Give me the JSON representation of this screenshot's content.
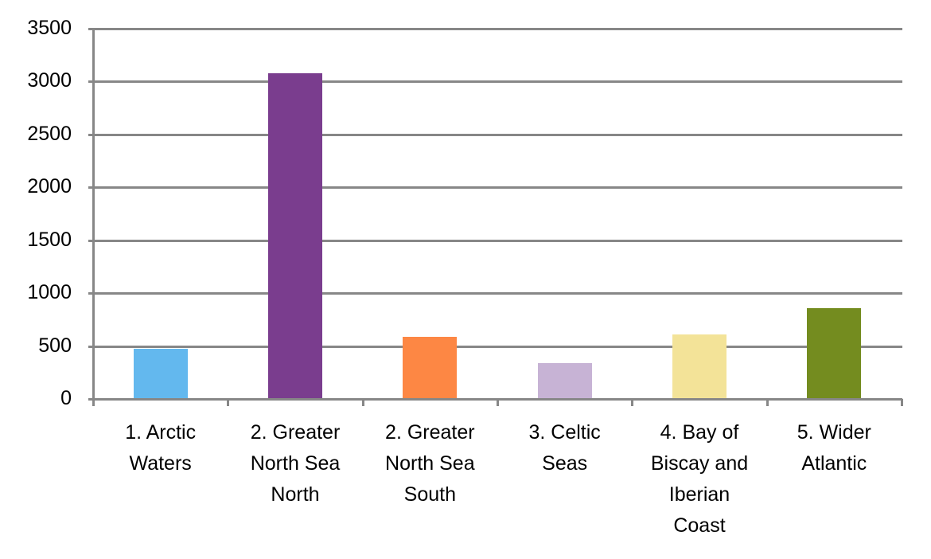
{
  "chart_data": {
    "type": "bar",
    "title": "",
    "xlabel": "",
    "ylabel": "",
    "ylim": [
      0,
      3500
    ],
    "yticks": [
      0,
      500,
      1000,
      1500,
      2000,
      2500,
      3000,
      3500
    ],
    "grid": true,
    "legend": null,
    "categories": [
      "1. Arctic Waters",
      "2. Greater North Sea North",
      "2. Greater North Sea South",
      "3. Celtic Seas",
      "4. Bay of Biscay and Iberian Coast",
      "5. Wider Atlantic"
    ],
    "category_labels_wrapped": [
      "1. Arctic\nWaters",
      "2. Greater\nNorth Sea\nNorth",
      "2. Greater\nNorth Sea\nSouth",
      "3. Celtic\nSeas",
      "4. Bay of\nBiscay and\nIberian\nCoast",
      "5. Wider\nAtlantic"
    ],
    "values": [
      475,
      3075,
      585,
      340,
      610,
      855
    ],
    "colors": [
      "#63b8ee",
      "#7a3d8e",
      "#fd8744",
      "#c7b3d5",
      "#f3e398",
      "#748c1f"
    ]
  }
}
